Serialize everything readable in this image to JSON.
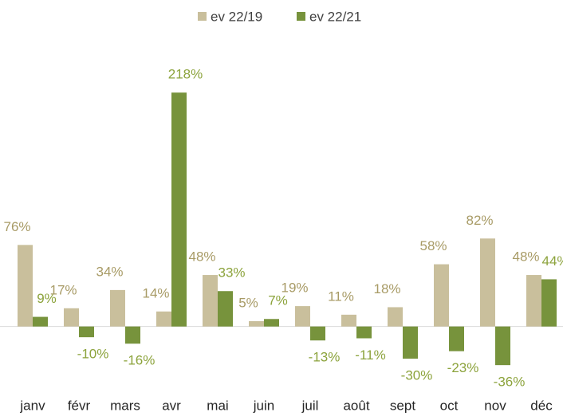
{
  "chart_data": {
    "type": "bar",
    "categories": [
      "janv",
      "févr",
      "mars",
      "avr",
      "mai",
      "juin",
      "juil",
      "août",
      "sept",
      "oct",
      "nov",
      "déc"
    ],
    "series": [
      {
        "name": "ev 22/19",
        "color": "#c9bf9c",
        "label_color": "#a89b66",
        "values": [
          76,
          17,
          34,
          14,
          48,
          5,
          19,
          11,
          18,
          58,
          82,
          48
        ],
        "value_labels": [
          "76%",
          "17%",
          "34%",
          "14%",
          "48%",
          "5%",
          "19%",
          "11%",
          "18%",
          "58%",
          "82%",
          "48%"
        ]
      },
      {
        "name": "ev 22/21",
        "color": "#77933c",
        "label_color": "#8ca33c",
        "values": [
          9,
          -10,
          -16,
          218,
          33,
          7,
          -13,
          -11,
          -30,
          -23,
          -36,
          44
        ],
        "value_labels": [
          "9%",
          "-10%",
          "-16%",
          "218%",
          "33%",
          "7%",
          "-13%",
          "-11%",
          "-30%",
          "-23%",
          "-36%",
          "44%"
        ]
      }
    ],
    "ylim": [
      -50,
      230
    ],
    "legend": "top"
  }
}
